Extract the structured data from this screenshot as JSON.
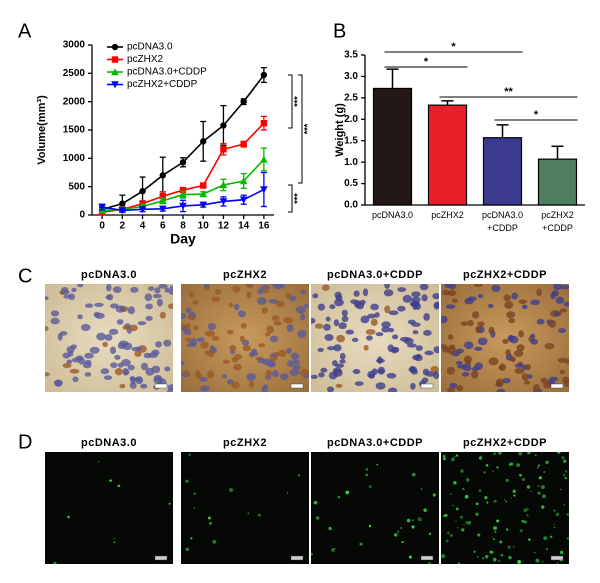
{
  "chart_data": [
    {
      "type": "line",
      "panel_label": "A",
      "xlabel": "Day",
      "ylabel": "Volume(mm³)",
      "x": [
        0,
        2,
        4,
        6,
        8,
        10,
        12,
        14,
        16
      ],
      "xlim": [
        -1,
        17
      ],
      "xticks": [
        0,
        2,
        4,
        6,
        8,
        10,
        12,
        14,
        16
      ],
      "ylim": [
        0,
        3000
      ],
      "yticks": [
        0,
        500,
        1000,
        1500,
        2000,
        2500,
        3000
      ],
      "legend": "upper left",
      "series": [
        {
          "name": "pcDNA3.0",
          "color": "#000000",
          "marker": "circle",
          "values": [
            100,
            200,
            420,
            700,
            930,
            1300,
            1580,
            2000,
            2470
          ],
          "errors": [
            40,
            150,
            250,
            320,
            80,
            350,
            350,
            50,
            130
          ]
        },
        {
          "name": "pcZHX2",
          "color": "#ff0000",
          "marker": "square",
          "values": [
            50,
            100,
            200,
            330,
            440,
            520,
            1160,
            1250,
            1620
          ],
          "errors": [
            20,
            30,
            50,
            80,
            40,
            30,
            100,
            50,
            120
          ]
        },
        {
          "name": "pcDNA3.0+CDDP",
          "color": "#00bb00",
          "marker": "triangle-up",
          "values": [
            80,
            100,
            150,
            250,
            360,
            370,
            530,
            600,
            980
          ],
          "errors": [
            30,
            30,
            40,
            50,
            60,
            40,
            100,
            130,
            200
          ]
        },
        {
          "name": "pcZHX2+CDDP",
          "color": "#0000ff",
          "marker": "triangle-down",
          "values": [
            140,
            80,
            100,
            110,
            160,
            180,
            240,
            270,
            450
          ],
          "errors": [
            50,
            30,
            40,
            40,
            100,
            40,
            80,
            80,
            300
          ]
        }
      ],
      "annotations": [
        "***",
        "***",
        "***"
      ]
    },
    {
      "type": "bar",
      "panel_label": "B",
      "ylabel": "Weight (g)",
      "categories": [
        "pcDNA3.0",
        "pcZHX2",
        "pcDNA3.0\n+CDDP",
        "pcZHX2\n+CDDP"
      ],
      "values": [
        2.72,
        2.33,
        1.57,
        1.07
      ],
      "errors": [
        0.45,
        0.1,
        0.3,
        0.3
      ],
      "colors": [
        "#231816",
        "#e8202a",
        "#3b3a8e",
        "#4f7d5f"
      ],
      "ylim": [
        0,
        3.5
      ],
      "yticks": [
        {
          "value": 0,
          "label": "0.0"
        },
        0.5,
        {
          "value": 1,
          "label": "1.0"
        },
        1.5,
        {
          "value": 2,
          "label": "2.0"
        },
        2.5,
        {
          "value": 3,
          "label": "3.0"
        },
        3.5
      ],
      "annotations": [
        "*",
        "*",
        "**",
        "*"
      ]
    }
  ],
  "panel_c": {
    "label": "C",
    "captions": [
      "pcDNA3.0",
      "pcZHX2",
      "pcDNA3.0+CDDP",
      "pcZHX2+CDDP"
    ]
  },
  "panel_d": {
    "label": "D",
    "captions": [
      "pcDNA3.0",
      "pcZHX2",
      "pcDNA3.0+CDDP",
      "pcZHX2+CDDP"
    ]
  }
}
